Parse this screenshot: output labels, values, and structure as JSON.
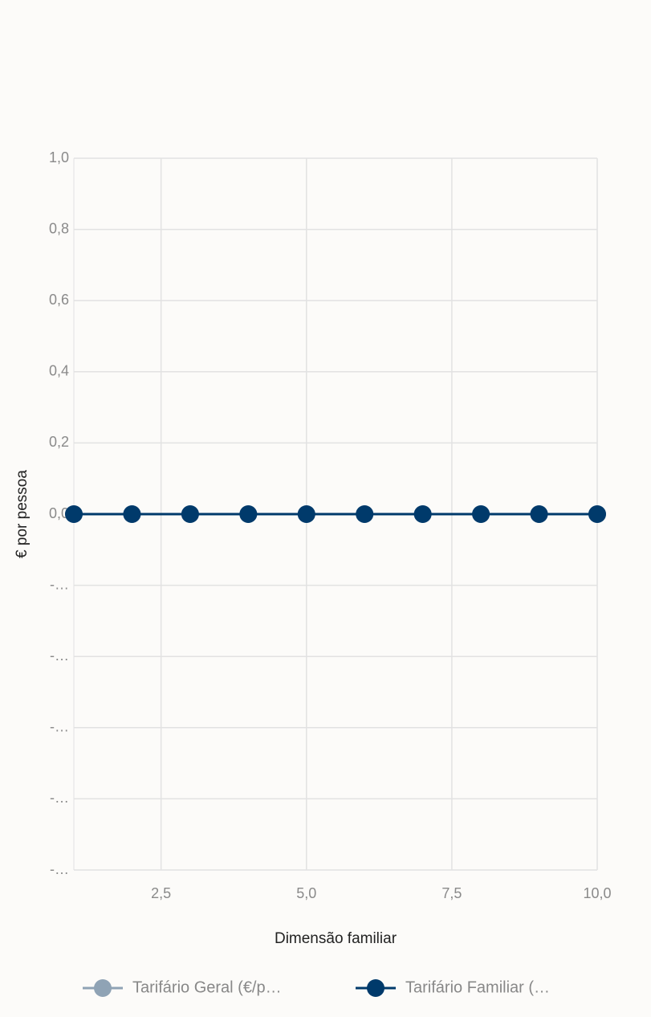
{
  "chart_data": {
    "type": "line",
    "x_label": "Dimensão familiar",
    "y_label": "€ por pessoa",
    "x": [
      1,
      2,
      3,
      4,
      5,
      6,
      7,
      8,
      9,
      10
    ],
    "series": [
      {
        "name": "Tarifário Geral (€/p…",
        "color": "#8fa3b5",
        "values": [
          0,
          0,
          0,
          0,
          0,
          0,
          0,
          0,
          0,
          0
        ]
      },
      {
        "name": "Tarifário Familiar (…",
        "color": "#003a6b",
        "values": [
          0,
          0,
          0,
          0,
          0,
          0,
          0,
          0,
          0,
          0
        ]
      }
    ],
    "xlim": [
      1,
      10
    ],
    "xticks": [
      {
        "value": 2.5,
        "label": "2,5"
      },
      {
        "value": 5,
        "label": "5,0"
      },
      {
        "value": 7.5,
        "label": "7,5"
      },
      {
        "value": 10,
        "label": "10,0"
      }
    ],
    "ylim": [
      -1,
      1
    ],
    "yticks": [
      {
        "value": 1,
        "label": "1,0"
      },
      {
        "value": 0.8,
        "label": "0,8"
      },
      {
        "value": 0.6,
        "label": "0,6"
      },
      {
        "value": 0.4,
        "label": "0,4"
      },
      {
        "value": 0.2,
        "label": "0,2"
      },
      {
        "value": 0,
        "label": "0,0"
      },
      {
        "value": -0.2,
        "label": "-…"
      },
      {
        "value": -0.4,
        "label": "-…"
      },
      {
        "value": -0.6,
        "label": "-…"
      },
      {
        "value": -0.8,
        "label": "-…"
      },
      {
        "value": -1,
        "label": "-…"
      }
    ],
    "grid": true,
    "legend": "bottom"
  }
}
